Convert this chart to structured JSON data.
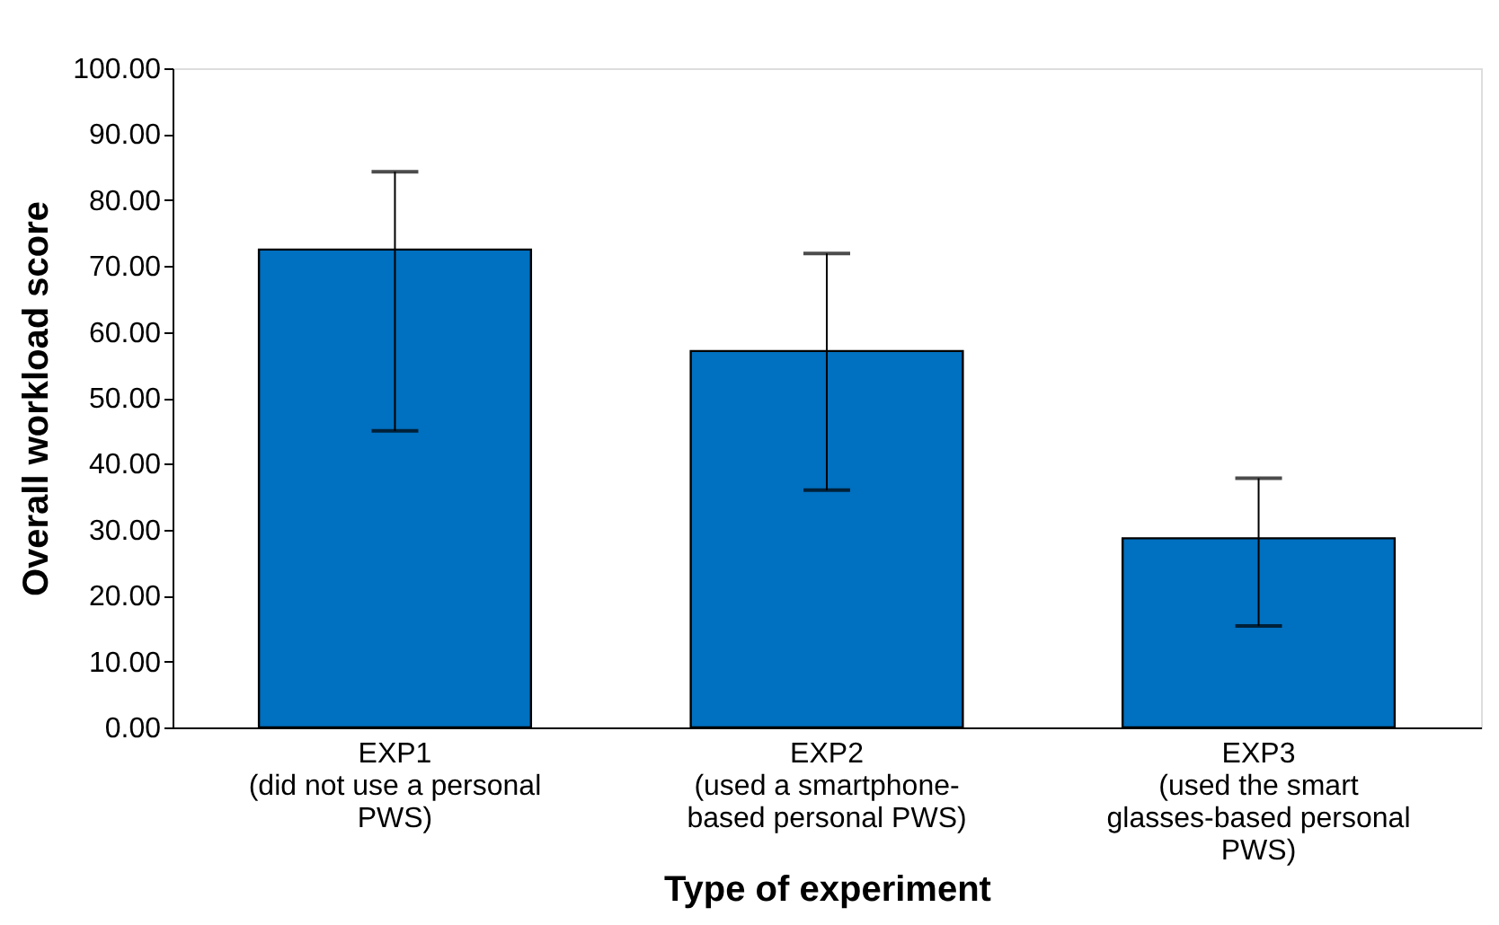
{
  "chart_data": {
    "type": "bar",
    "xlabel": "Type of experiment",
    "ylabel": "Overall workload score",
    "categories": [
      "EXP1\n(did not use a personal\nPWS)",
      "EXP2\n(used a smartphone-\nbased personal PWS)",
      "EXP3\n(used the smart\nglasses-based personal\nPWS)"
    ],
    "values": [
      72.5,
      57.1,
      28.7
    ],
    "errors": [
      [
        45.0,
        84.3
      ],
      [
        36.0,
        71.9
      ],
      [
        15.4,
        37.8
      ]
    ],
    "color": "#0070c0",
    "ylim": [
      0,
      100
    ],
    "yticks": [
      {
        "value": 0,
        "label": "0.00"
      },
      {
        "value": 10,
        "label": "10.00"
      },
      {
        "value": 20,
        "label": "20.00"
      },
      {
        "value": 30,
        "label": "30.00"
      },
      {
        "value": 40,
        "label": "40.00"
      },
      {
        "value": 50,
        "label": "50.00"
      },
      {
        "value": 60,
        "label": "60.00"
      },
      {
        "value": 70,
        "label": "70.00"
      },
      {
        "value": 80,
        "label": "80.00"
      },
      {
        "value": 90,
        "label": "90.00"
      },
      {
        "value": 100,
        "label": "100.00"
      }
    ],
    "grid": false
  }
}
